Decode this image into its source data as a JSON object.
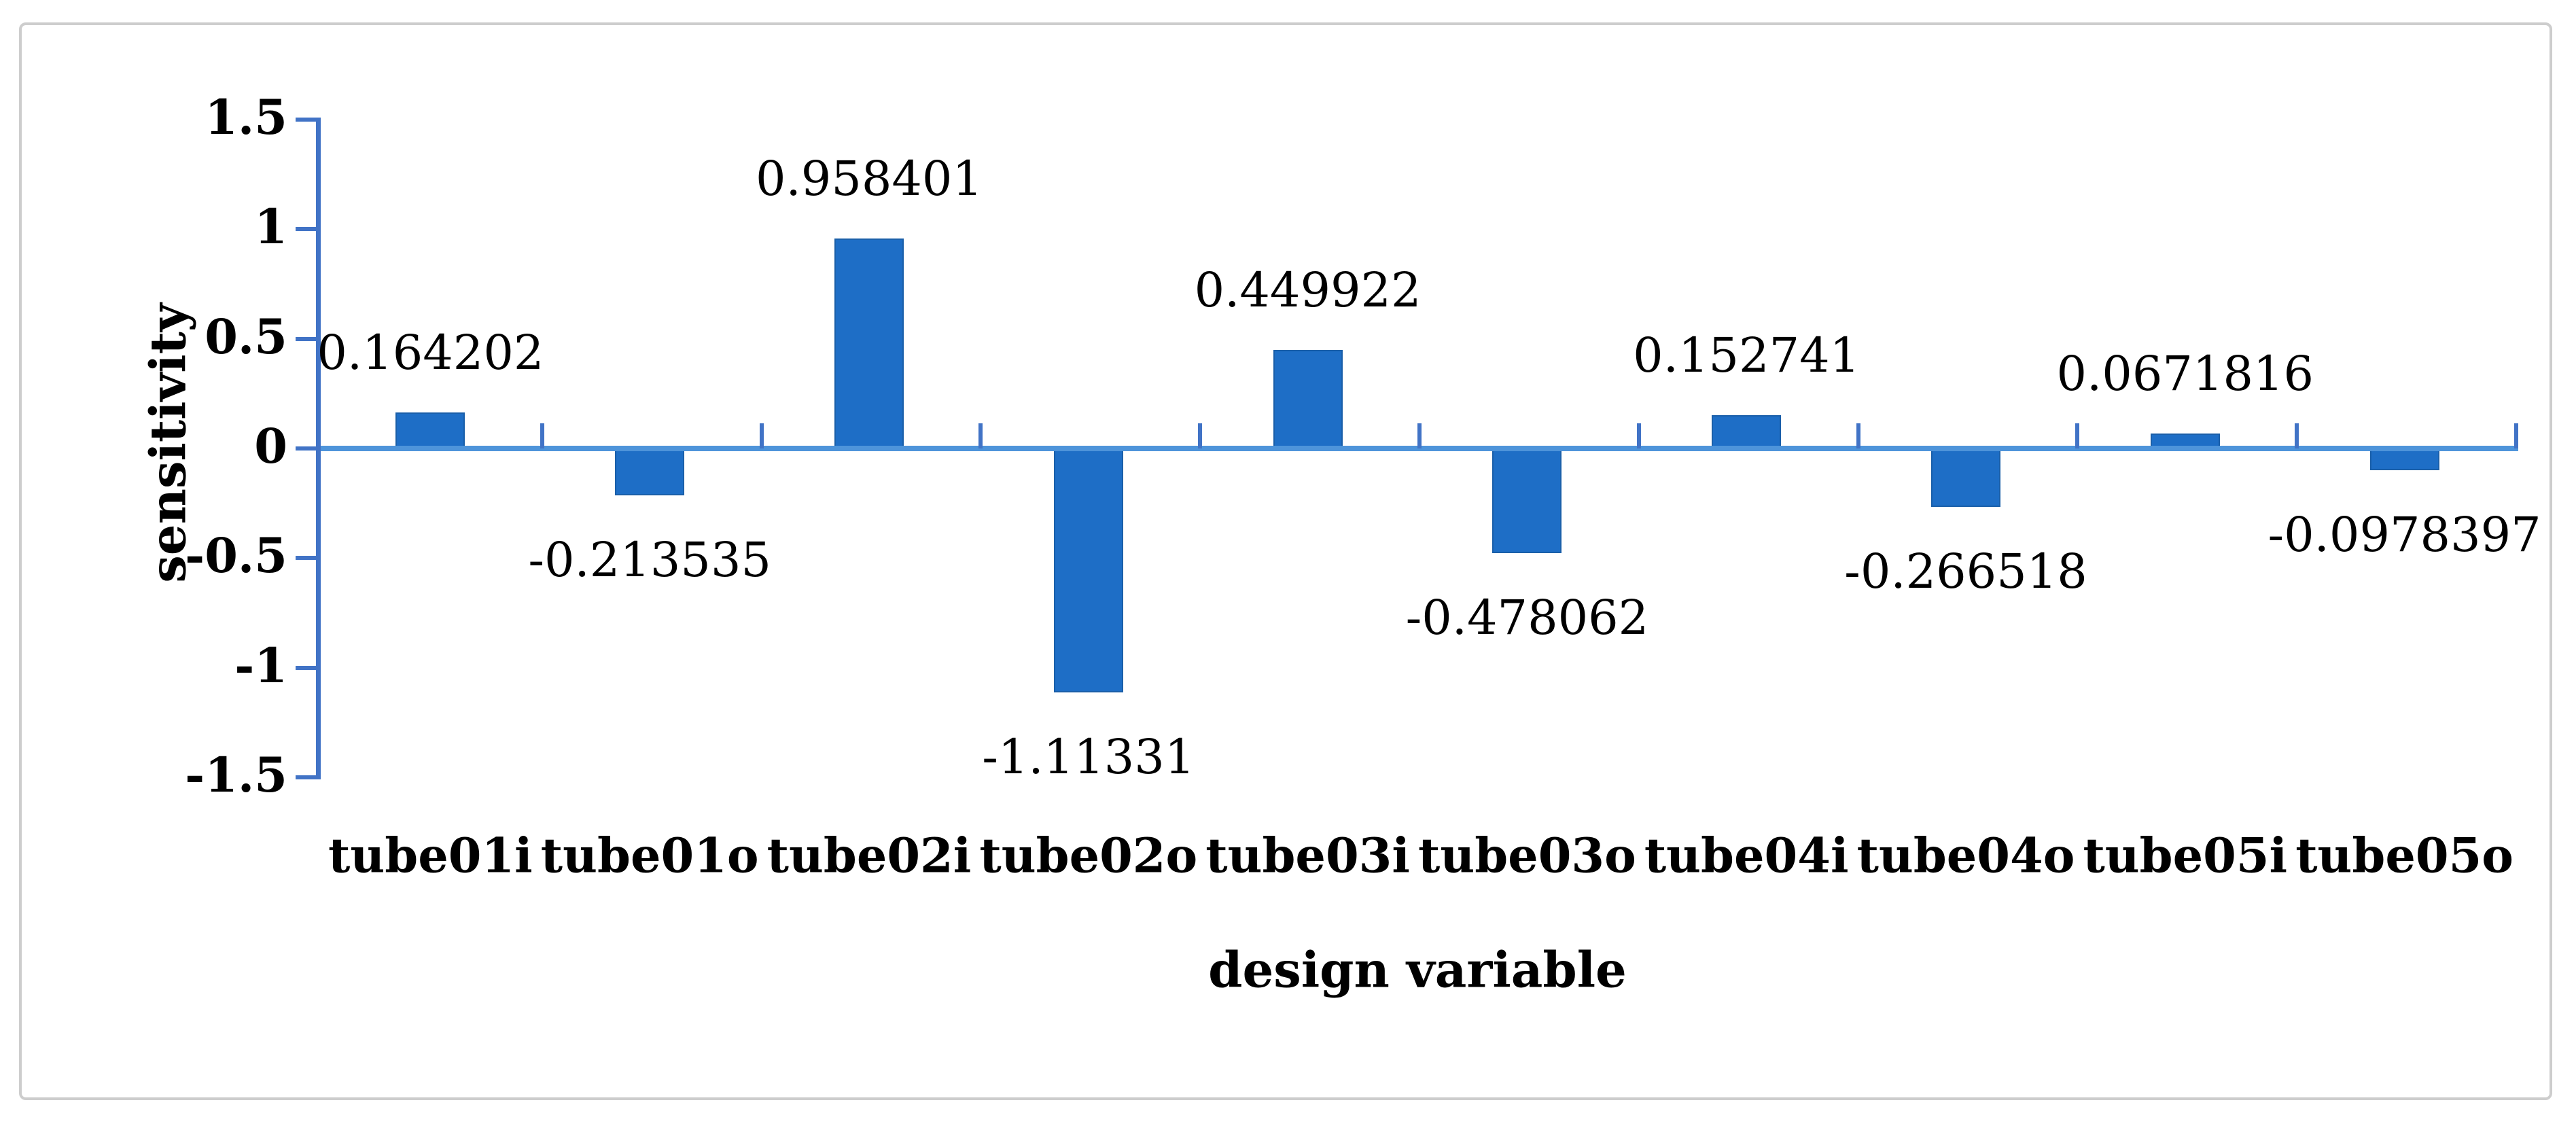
{
  "figure": {
    "background": "#ffffff",
    "frame_border_color": "#cdcdcd"
  },
  "chart_data": {
    "type": "bar",
    "title": "",
    "xlabel": "design variable",
    "ylabel": "sensitivity",
    "categories": [
      "tube01i",
      "tube01o",
      "tube02i",
      "tube02o",
      "tube03i",
      "tube03o",
      "tube04i",
      "tube04o",
      "tube05i",
      "tube05o"
    ],
    "values": [
      0.164202,
      -0.213535,
      0.958401,
      -1.11331,
      0.449922,
      -0.478062,
      0.152741,
      -0.266518,
      0.0671816,
      -0.0978397
    ],
    "data_labels": [
      "0.164202",
      "-0.213535",
      "0.958401",
      "-1.11331",
      "0.449922",
      "-0.478062",
      "0.152741",
      "-0.266518",
      "0.0671816",
      "-0.0978397"
    ],
    "y_ticks": [
      "1.5",
      "1",
      "0.5",
      "0",
      "-0.5",
      "-1",
      "-1.5"
    ],
    "y_tick_values": [
      1.5,
      1,
      0.5,
      0,
      -0.5,
      -1,
      -1.5
    ],
    "ylim": [
      -1.5,
      1.5
    ],
    "bar_color": "#1e6ec6",
    "bar_edge_color": "#1a5fa9",
    "axis_color": "#4173c6",
    "baseline_color": "#4e94da",
    "text_color": "#000000",
    "grid": "off",
    "legend": "none"
  }
}
